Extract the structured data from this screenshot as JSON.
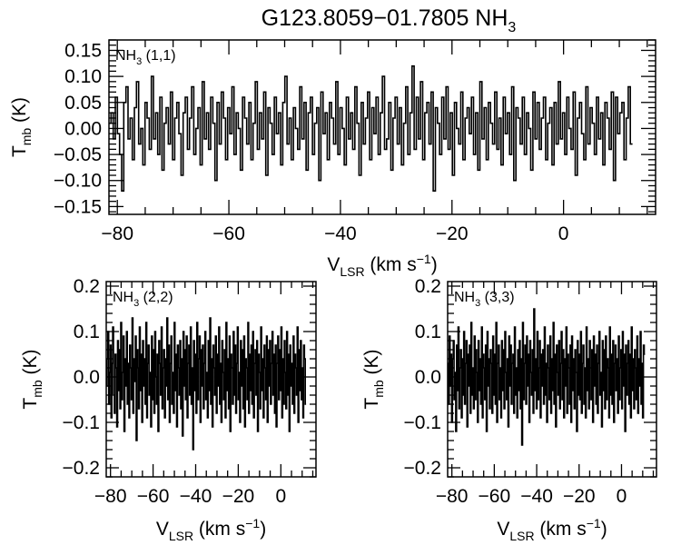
{
  "figure": {
    "title": "G123.8059−01.7805 NH",
    "title_sub": "3"
  },
  "chart_data": [
    {
      "type": "line",
      "style": "histogram-step",
      "line_label": {
        "text": "NH",
        "sub": "3",
        "suffix": " (1,1)"
      },
      "xlabel": {
        "text": "V",
        "sub": "LSR",
        "mid": " (km s",
        "sup": "−1",
        "end": ")"
      },
      "ylabel": {
        "text": "T",
        "sub": "mb",
        "end": " (K)"
      },
      "xlim": [
        -81.5,
        16.5
      ],
      "ylim": [
        -0.165,
        0.17
      ],
      "xticks": [
        -80,
        -60,
        -40,
        -20,
        0
      ],
      "xtick_labels": [
        "−80",
        "−60",
        "−40",
        "−20",
        "0"
      ],
      "yticks": [
        -0.15,
        -0.1,
        -0.05,
        0.0,
        0.05,
        0.1,
        0.15
      ],
      "ytick_labels": [
        "−0.15",
        "−0.10",
        "−0.05",
        "0.00",
        "0.05",
        "0.10",
        "0.15"
      ],
      "grid": false,
      "x_start": -81.5,
      "x_step": 0.38,
      "values": [
        0.01,
        0.03,
        -0.02,
        0.06,
        -0.01,
        -0.05,
        -0.12,
        0.05,
        0.08,
        -0.02,
        0.02,
        -0.06,
        0.04,
        0.09,
        -0.03,
        0.0,
        -0.07,
        0.05,
        0.02,
        -0.04,
        0.1,
        -0.02,
        0.03,
        -0.05,
        0.06,
        -0.08,
        0.01,
        0.04,
        -0.03,
        0.07,
        -0.06,
        0.02,
        0.05,
        -0.01,
        -0.09,
        0.03,
        0.06,
        -0.04,
        0.02,
        0.08,
        -0.05,
        0.0,
        0.04,
        -0.07,
        0.09,
        -0.02,
        0.03,
        -0.04,
        0.06,
        0.01,
        -0.1,
        0.05,
        -0.03,
        0.07,
        0.02,
        -0.06,
        0.04,
        -0.01,
        0.08,
        -0.05,
        0.03,
        0.0,
        -0.08,
        0.06,
        0.02,
        -0.03,
        0.05,
        -0.06,
        0.01,
        0.09,
        -0.04,
        0.03,
        -0.02,
        0.07,
        -0.09,
        0.04,
        0.01,
        -0.05,
        0.06,
        -0.01,
        0.03,
        -0.07,
        0.05,
        0.1,
        -0.03,
        0.02,
        -0.06,
        0.04,
        0.0,
        -0.04,
        0.08,
        -0.02,
        0.05,
        -0.08,
        0.03,
        0.06,
        -0.05,
        0.01,
        0.04,
        -0.1,
        0.07,
        -0.01,
        0.03,
        -0.06,
        0.05,
        0.02,
        -0.03,
        0.09,
        -0.05,
        0.04,
        0.0,
        -0.07,
        0.06,
        -0.02,
        0.03,
        -0.04,
        0.08,
        0.01,
        -0.09,
        0.05,
        -0.03,
        0.02,
        0.07,
        -0.06,
        0.04,
        -0.01,
        0.06,
        -0.05,
        0.03,
        0.1,
        -0.04,
        -0.02,
        0.05,
        -0.08,
        0.02,
        0.06,
        -0.03,
        0.04,
        -0.07,
        0.01,
        0.08,
        -0.05,
        0.03,
        0.12,
        -0.04,
        0.06,
        -0.02,
        0.09,
        -0.06,
        0.03,
        0.05,
        -0.03,
        0.07,
        -0.12,
        0.04,
        0.01,
        -0.05,
        0.06,
        -0.02,
        0.08,
        -0.04,
        0.03,
        -0.09,
        0.05,
        0.0,
        -0.03,
        0.07,
        -0.06,
        0.02,
        0.04,
        -0.01,
        0.06,
        -0.05,
        0.03,
        -0.08,
        0.09,
        -0.02,
        0.04,
        -0.06,
        0.05,
        0.01,
        -0.03,
        0.07,
        -0.04,
        0.02,
        -0.07,
        0.06,
        -0.01,
        0.03,
        -0.05,
        0.08,
        -0.1,
        0.04,
        0.02,
        -0.03,
        0.06,
        -0.05,
        0.03,
        0.0,
        -0.08,
        0.07,
        -0.02,
        0.05,
        -0.04,
        0.02,
        0.06,
        -0.06,
        0.01,
        0.04,
        -0.07,
        0.05,
        -0.03,
        0.09,
        -0.02,
        0.03,
        -0.05,
        0.06,
        0.0,
        -0.04,
        0.07,
        -0.09,
        0.02,
        0.05,
        -0.01,
        -0.06,
        0.08,
        -0.03,
        0.04,
        0.01,
        -0.05,
        0.06,
        -0.02,
        0.03,
        -0.07,
        0.05,
        0.02,
        -0.04,
        0.07,
        -0.1,
        0.06,
        -0.01,
        0.03,
        0.05,
        -0.06,
        0.02,
        0.08,
        -0.03
      ]
    },
    {
      "type": "line",
      "style": "histogram-step",
      "line_label": {
        "text": "NH",
        "sub": "3",
        "suffix": " (2,2)"
      },
      "xlabel": {
        "text": "V",
        "sub": "LSR",
        "mid": " (km s",
        "sup": "−1",
        "end": ")"
      },
      "ylabel": {
        "text": "T",
        "sub": "mb",
        "end": " (K)"
      },
      "xlim": [
        -82,
        16.5
      ],
      "ylim": [
        -0.22,
        0.21
      ],
      "xticks": [
        -80,
        -60,
        -40,
        -20,
        0
      ],
      "xtick_labels": [
        "−80",
        "−60",
        "−40",
        "−20",
        "0"
      ],
      "yticks": [
        -0.2,
        -0.1,
        0.0,
        0.1,
        0.2
      ],
      "ytick_labels": [
        "−0.2",
        "−0.1",
        "0.0",
        "0.1",
        "0.2"
      ],
      "grid": false,
      "x_start": -82,
      "x_step": 0.38,
      "values": [
        -0.02,
        0.04,
        0.1,
        -0.06,
        0.01,
        0.07,
        -0.09,
        0.03,
        0.11,
        -0.04,
        -0.08,
        0.05,
        0.02,
        -0.11,
        0.08,
        -0.03,
        0.06,
        -0.07,
        0.12,
        -0.05,
        0.01,
        0.09,
        -0.12,
        0.04,
        -0.02,
        0.1,
        -0.06,
        0.03,
        -0.09,
        0.07,
        0.02,
        -0.05,
        0.13,
        -0.08,
        0.04,
        -0.01,
        0.09,
        -0.14,
        0.06,
        0.02,
        -0.07,
        0.11,
        -0.03,
        0.05,
        -0.1,
        0.08,
        -0.02,
        0.04,
        -0.06,
        0.12,
        -0.09,
        0.03,
        0.07,
        -0.04,
        0.01,
        -0.11,
        0.09,
        -0.05,
        0.06,
        -0.08,
        0.1,
        0.0,
        -0.06,
        0.05,
        -0.12,
        0.08,
        0.03,
        -0.04,
        0.11,
        -0.07,
        0.02,
        0.06,
        -0.09,
        0.04,
        -0.02,
        0.13,
        -0.05,
        0.07,
        -0.1,
        0.03,
        0.09,
        -0.06,
        0.01,
        -0.08,
        0.12,
        -0.03,
        0.05,
        -0.11,
        0.07,
        0.02,
        -0.04,
        0.08,
        -0.07,
        0.04,
        -0.13,
        0.1,
        -0.02,
        0.06,
        -0.05,
        0.09,
        -0.09,
        0.03,
        0.07,
        -0.04,
        0.11,
        -0.06,
        0.02,
        -0.16,
        0.08,
        -0.03,
        0.05,
        -0.08,
        0.12,
        -0.05,
        0.04,
        0.09,
        -0.1,
        0.06,
        -0.02,
        0.07,
        -0.07,
        0.03,
        0.1,
        -0.05,
        0.01,
        -0.09,
        0.08,
        -0.03,
        0.13,
        -0.06,
        0.04,
        -0.11,
        0.07,
        0.02,
        -0.04,
        0.09,
        -0.08,
        0.05,
        -0.02,
        0.11,
        -0.06,
        0.03,
        -0.1,
        0.08,
        0.01,
        -0.05,
        0.06,
        -0.09,
        0.12,
        -0.03,
        0.04,
        -0.07,
        0.09,
        -0.12,
        0.05,
        0.02,
        -0.06,
        0.1,
        -0.04,
        0.07,
        -0.08,
        0.03,
        0.11,
        -0.05,
        0.01,
        -0.1,
        0.08,
        -0.02,
        0.06,
        -0.07,
        0.09,
        -0.11,
        0.04,
        0.02,
        -0.05,
        0.12,
        -0.08,
        0.05,
        -0.03,
        0.07,
        -0.06,
        0.1,
        -0.09,
        0.03,
        0.06,
        -0.04,
        0.08,
        -0.12,
        0.05,
        0.01,
        -0.07,
        0.11,
        -0.03,
        0.04,
        -0.09,
        0.07,
        0.02,
        -0.05,
        0.09,
        -0.1,
        0.06,
        -0.02,
        0.08,
        -0.06,
        0.03,
        0.1,
        -0.04,
        0.05,
        -0.08,
        0.07,
        -0.11,
        0.03,
        0.09,
        -0.05,
        0.06,
        -0.03,
        0.11,
        -0.09,
        0.04,
        -0.06,
        0.08,
        0.01,
        -0.07,
        0.1,
        -0.04,
        0.05,
        -0.12,
        0.07,
        -0.02,
        0.03,
        -0.06,
        0.09,
        -0.08,
        0.05,
        0.02,
        -0.04,
        0.11,
        -0.1,
        0.06,
        -0.03,
        0.08,
        -0.05,
        0.02,
        -0.09,
        0.07,
        0.04,
        -0.06
      ]
    },
    {
      "type": "line",
      "style": "histogram-step",
      "line_label": {
        "text": "NH",
        "sub": "3",
        "suffix": " (3,3)"
      },
      "xlabel": {
        "text": "V",
        "sub": "LSR",
        "mid": " (km s",
        "sup": "−1",
        "end": ")"
      },
      "ylabel": {
        "text": "T",
        "sub": "mb",
        "end": " (K)"
      },
      "xlim": [
        -82,
        16.5
      ],
      "ylim": [
        -0.22,
        0.21
      ],
      "xticks": [
        -80,
        -60,
        -40,
        -20,
        0
      ],
      "xtick_labels": [
        "−80",
        "−60",
        "−40",
        "−20",
        "0"
      ],
      "yticks": [
        -0.2,
        -0.1,
        0.0,
        0.1,
        0.2
      ],
      "ytick_labels": [
        "−0.2",
        "−0.1",
        "0.0",
        "0.1",
        "0.2"
      ],
      "grid": false,
      "x_start": -82,
      "x_step": 0.38,
      "values": [
        0.03,
        -0.06,
        0.09,
        -0.02,
        0.05,
        -0.1,
        0.04,
        0.08,
        -0.05,
        0.01,
        -0.12,
        0.07,
        -0.03,
        0.11,
        -0.07,
        0.02,
        0.06,
        -0.09,
        0.04,
        -0.04,
        0.1,
        -0.06,
        0.03,
        0.08,
        -0.11,
        0.05,
        -0.02,
        0.07,
        -0.08,
        0.12,
        -0.04,
        0.02,
        -0.07,
        0.09,
        -0.05,
        0.06,
        0.01,
        -0.1,
        0.08,
        -0.03,
        0.04,
        -0.06,
        0.11,
        -0.09,
        0.05,
        0.02,
        -0.05,
        0.07,
        -0.12,
        0.1,
        -0.02,
        0.04,
        -0.07,
        0.06,
        0.03,
        -0.08,
        0.09,
        -0.04,
        0.05,
        -0.06,
        0.12,
        -0.1,
        0.03,
        0.07,
        -0.05,
        0.02,
        -0.09,
        0.08,
        -0.03,
        0.06,
        -0.07,
        0.1,
        0.01,
        -0.05,
        0.04,
        -0.11,
        0.09,
        -0.02,
        0.07,
        -0.06,
        0.03,
        0.05,
        -0.08,
        0.11,
        -0.04,
        0.02,
        -0.09,
        0.06,
        -0.03,
        0.08,
        -0.07,
        0.04,
        -0.15,
        0.12,
        -0.05,
        0.03,
        0.07,
        -0.06,
        0.09,
        -0.02,
        0.05,
        -0.1,
        0.08,
        0.01,
        -0.04,
        0.06,
        -0.08,
        0.15,
        -0.03,
        0.04,
        -0.07,
        0.1,
        -0.05,
        0.02,
        0.08,
        -0.09,
        0.05,
        -0.02,
        0.06,
        -0.06,
        0.11,
        -0.04,
        0.03,
        -0.1,
        0.07,
        0.02,
        -0.05,
        0.09,
        -0.08,
        0.04,
        -0.03,
        0.12,
        -0.06,
        0.05,
        -0.11,
        0.07,
        0.01,
        -0.04,
        0.08,
        -0.07,
        0.03,
        0.1,
        -0.05,
        0.06,
        -0.09,
        0.04,
        -0.02,
        0.11,
        -0.08,
        0.05,
        0.02,
        -0.06,
        0.07,
        -0.1,
        0.09,
        -0.03,
        0.04,
        -0.07,
        0.06,
        0.01,
        -0.12,
        0.08,
        -0.04,
        0.05,
        -0.05,
        0.1,
        -0.08,
        0.03,
        0.07,
        -0.06,
        0.02,
        -0.09,
        0.11,
        -0.03,
        0.04,
        -0.07,
        0.08,
        0.02,
        -0.05,
        0.06,
        -0.1,
        0.09,
        -0.02,
        0.05,
        -0.06,
        0.07,
        -0.08,
        0.03,
        0.1,
        -0.04,
        0.01,
        -0.11,
        0.08,
        -0.03,
        0.06,
        -0.07,
        0.09,
        -0.05,
        0.04,
        0.02,
        -0.09,
        0.11,
        -0.04,
        0.05,
        -0.06,
        0.08,
        -0.1,
        0.03,
        0.07,
        -0.03,
        0.04,
        -0.08,
        0.09,
        -0.05,
        0.02,
        0.06,
        -0.07,
        0.1,
        -0.02,
        0.05,
        -0.12,
        0.07,
        -0.04,
        0.03,
        0.08,
        -0.06,
        0.05,
        -0.09,
        0.11,
        -0.03,
        0.04,
        -0.07,
        0.06,
        0.02,
        -0.05,
        0.09,
        -0.08,
        0.04,
        -0.02,
        0.1,
        -0.06,
        0.03,
        -0.09,
        0.07,
        0.05
      ]
    }
  ]
}
